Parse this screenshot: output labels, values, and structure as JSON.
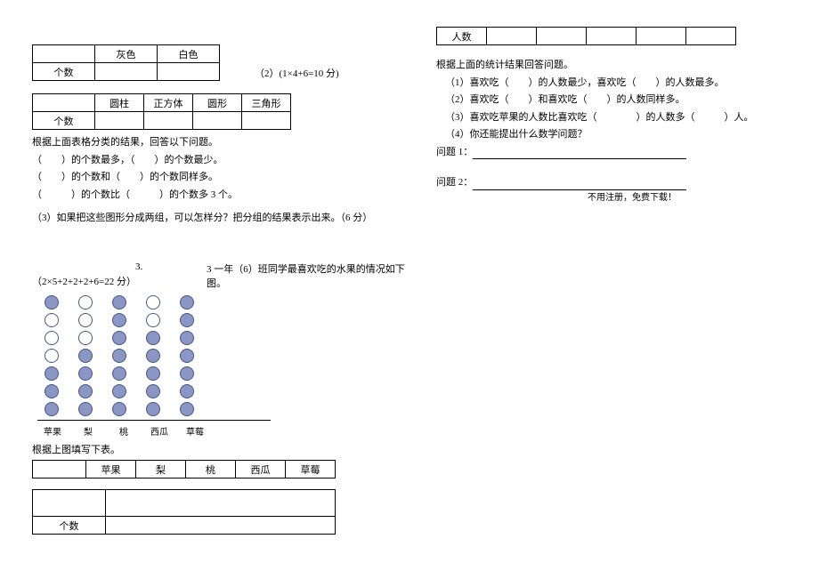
{
  "left": {
    "table1": {
      "h1": "灰色",
      "h2": "白色",
      "row": "个数"
    },
    "q2_label": "（2）(1×4+6=10 分)",
    "table2": {
      "h1": "圆柱",
      "h2": "正方体",
      "h3": "圆形",
      "h4": "三角形",
      "row": "个数"
    },
    "p1": "根据上面表格分类的结果，回答以下问题。",
    "p2": "（　　）的个数最多，（　　）的个数最少。",
    "p3": "（　　）的个数和（　　）的个数同样多。",
    "p4": "（　　　）的个数比（　　　）的个数多 3 个。",
    "p5": "（3）如果把这些图形分成两组，可以怎样分？把分组的结果表示出来。（6 分）",
    "q3_num": "3.",
    "q3_text": "3 一年（6）班同学最喜欢吃的水果的情况如下图。",
    "q3_scoring": "（2×5+2+2+2+6=22 分）",
    "chart": {
      "labels": [
        "苹果",
        "梨",
        "桃",
        "西瓜",
        "草莓"
      ],
      "columns": [
        [
          1,
          0,
          0,
          0,
          1,
          1,
          1
        ],
        [
          0,
          0,
          0,
          1,
          1,
          1,
          1
        ],
        [
          1,
          1,
          1,
          1,
          1,
          1,
          1
        ],
        [
          0,
          0,
          1,
          1,
          1,
          1,
          1
        ],
        [
          1,
          1,
          1,
          1,
          1,
          1,
          1
        ]
      ],
      "fill": "#8a96c4",
      "stroke": "#4a5788"
    },
    "fill_prompt": "根据上图填写下表。",
    "table3": {
      "h1": "苹果",
      "h2": "梨",
      "h3": "桃",
      "h4": "西瓜",
      "h5": "草莓"
    },
    "table4": {
      "row": "个数"
    }
  },
  "right": {
    "table_header": "人数",
    "p1": "根据上面的统计结果回答问题。",
    "p2": "（1）喜欢吃（　　）的人数最少，喜欢吃（　　）的人数最多。",
    "p3": "（2）喜欢吃（　　）和喜欢吃（　　）的人数同样多。",
    "p4": "（3）喜欢吃苹果的人数比喜欢吃（　　　　）的人数多（　　　）人。",
    "p5": "（4）你还能提出什么数学问题？",
    "q1": "问题 1：",
    "q2": "问题 2：",
    "footer": "不用注册，免费下载！"
  }
}
